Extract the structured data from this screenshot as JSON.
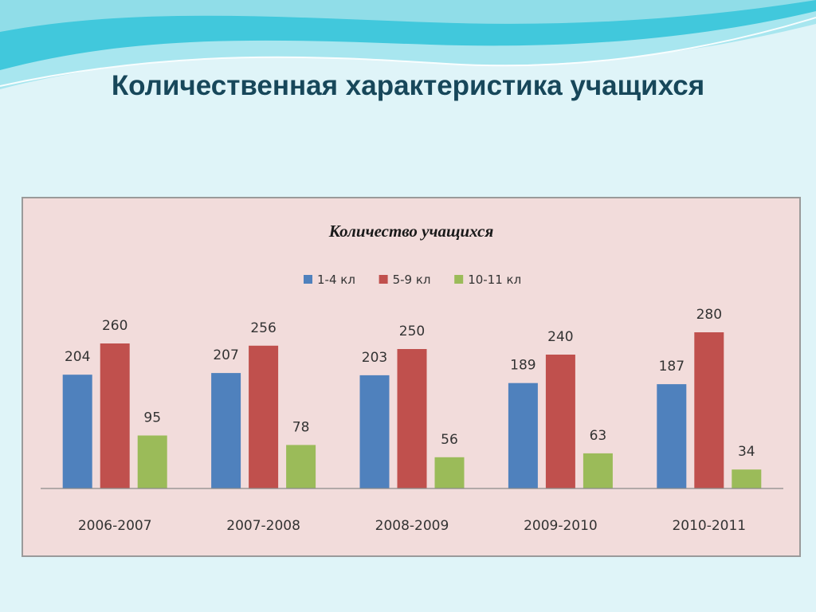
{
  "slide": {
    "title": "Количественная характеристика учащихся"
  },
  "colors": {
    "background": "#dff4f8",
    "title": "#17475a",
    "chart_area": "#f2dcdb",
    "wave_primary": "#41c8dc",
    "wave_light": "#a8e6ef"
  },
  "chart_data": {
    "type": "bar",
    "title": "Количество учащихся",
    "xlabel": "",
    "ylabel": "",
    "categories": [
      "2006-2007",
      "2007-2008",
      "2008-2009",
      "2009-2010",
      "2010-2011"
    ],
    "series": [
      {
        "name": "1-4 кл",
        "color": "#4f81bd",
        "values": [
          204,
          207,
          203,
          189,
          187
        ]
      },
      {
        "name": "5-9 кл",
        "color": "#c0504d",
        "values": [
          260,
          256,
          250,
          240,
          280
        ]
      },
      {
        "name": "10-11 кл",
        "color": "#9bbb59",
        "values": [
          95,
          78,
          56,
          63,
          34
        ]
      }
    ],
    "ylim": [
      0,
      300
    ],
    "grid": false,
    "legend_position": "top",
    "data_labels": true
  }
}
